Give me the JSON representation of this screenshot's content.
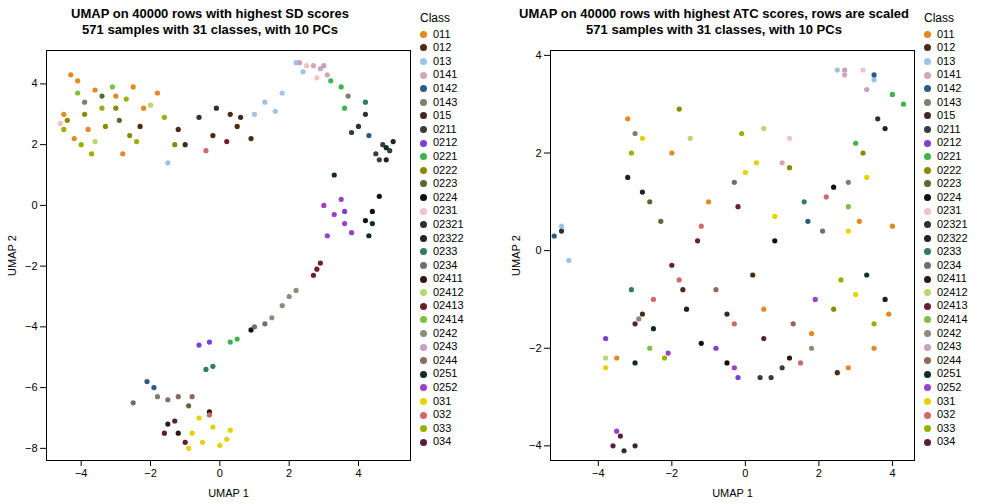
{
  "chart_data": [
    {
      "type": "scatter",
      "title": "UMAP on 40000 rows with highest SD scores",
      "subtitle": "571 samples with 31 classes, with 10 PCs",
      "x_label": "UMAP 1",
      "y_label": "UMAP 2",
      "legend_title": "Class",
      "legend": "right",
      "xlim": [
        -5,
        5.5
      ],
      "ylim": [
        -8.4,
        5.1
      ],
      "xticks": [
        -4,
        -2,
        0,
        2,
        4
      ],
      "yticks": [
        -8,
        -6,
        -4,
        -2,
        0,
        2,
        4
      ],
      "series": [
        {
          "name": "011",
          "color": "#E8871E",
          "x": [
            -4.3,
            -4.1,
            -4.5,
            -3.6,
            -3.0,
            -2.5,
            -3.8,
            -2.8,
            -4.2,
            -2.2,
            -1.8
          ],
          "y": [
            4.3,
            4.1,
            3.0,
            3.8,
            3.6,
            3.9,
            2.5,
            1.7,
            2.2,
            3.2,
            3.7
          ]
        },
        {
          "name": "012",
          "color": "#4D2A14",
          "x": [
            -1.2,
            0.3,
            0.5,
            -0.2,
            -2.3,
            0.9
          ],
          "y": [
            2.5,
            3.0,
            2.6,
            2.3,
            2.6,
            2.2
          ]
        },
        {
          "name": "013",
          "color": "#9DC3E6",
          "x": [
            1.0,
            1.3,
            1.8,
            2.2,
            2.4,
            -1.5,
            1.6
          ],
          "y": [
            3.0,
            3.4,
            3.7,
            4.7,
            4.4,
            1.4,
            3.1
          ]
        },
        {
          "name": "0141",
          "color": "#D6A6B8",
          "x": [
            2.7,
            2.9,
            3.1
          ],
          "y": [
            4.6,
            4.5,
            4.3
          ]
        },
        {
          "name": "0142",
          "color": "#2B5B84",
          "x": [
            -2.1,
            -1.9,
            4.3
          ],
          "y": [
            -5.8,
            -6.0,
            2.3
          ]
        },
        {
          "name": "0143",
          "color": "#7F7F6E",
          "x": [
            -3.9,
            -1.8,
            3.7
          ],
          "y": [
            3.4,
            -6.3,
            3.6
          ]
        },
        {
          "name": "015",
          "color": "#3C2A1E",
          "x": [
            -0.6,
            -0.1,
            0.6,
            -1.0
          ],
          "y": [
            2.9,
            3.2,
            2.9,
            2.0
          ]
        },
        {
          "name": "0211",
          "color": "#3A3A3A",
          "x": [
            4.5,
            4.7,
            4.9,
            4.6,
            3.8
          ],
          "y": [
            1.7,
            2.0,
            1.8,
            1.5,
            2.4
          ]
        },
        {
          "name": "0212",
          "color": "#7B3FD6",
          "x": [
            -0.6,
            -0.3,
            3.6
          ],
          "y": [
            -4.6,
            -4.5,
            -0.2
          ]
        },
        {
          "name": "0221",
          "color": "#3CB54A",
          "x": [
            3.2,
            3.5,
            3.6,
            0.3,
            0.5
          ],
          "y": [
            4.1,
            3.9,
            3.2,
            -4.5,
            -4.4
          ]
        },
        {
          "name": "0222",
          "color": "#8A8A00",
          "x": [
            -4.4,
            -3.9,
            -3.3,
            -3.0,
            -1.3,
            -2.6
          ],
          "y": [
            2.8,
            3.0,
            2.6,
            3.2,
            2.0,
            2.3
          ]
        },
        {
          "name": "0223",
          "color": "#556B2F",
          "x": [
            -3.4,
            -2.9,
            -0.9
          ],
          "y": [
            3.6,
            2.8,
            -6.6
          ]
        },
        {
          "name": "0224",
          "color": "#101010",
          "x": [
            4.4,
            4.6,
            4.2,
            0.9
          ],
          "y": [
            -0.2,
            0.3,
            -0.5,
            -4.1
          ]
        },
        {
          "name": "0231",
          "color": "#F4C2C2",
          "x": [
            2.5,
            2.8,
            -4.6
          ],
          "y": [
            4.6,
            4.2,
            2.7
          ]
        },
        {
          "name": "02321",
          "color": "#2F2F2F",
          "x": [
            4.2,
            4.0
          ],
          "y": [
            3.0,
            2.6
          ]
        },
        {
          "name": "02322",
          "color": "#222222",
          "x": [
            5.0,
            4.8
          ],
          "y": [
            2.1,
            1.5
          ]
        },
        {
          "name": "0233",
          "color": "#2E7D5B",
          "x": [
            -0.4,
            -0.2,
            4.2
          ],
          "y": [
            -5.4,
            -5.3,
            3.4
          ]
        },
        {
          "name": "0234",
          "color": "#6E6E6E",
          "x": [
            1.0,
            1.3,
            -2.5
          ],
          "y": [
            -4.0,
            -3.9,
            -6.5
          ]
        },
        {
          "name": "02411",
          "color": "#2A1A10",
          "x": [
            -1.5,
            -1.2,
            -0.3
          ],
          "y": [
            -7.2,
            -7.5,
            -6.8
          ]
        },
        {
          "name": "02412",
          "color": "#B5D96B",
          "x": [
            -3.6,
            -2.0
          ],
          "y": [
            2.1,
            3.3
          ]
        },
        {
          "name": "02413",
          "color": "#6B1F2A",
          "x": [
            2.7,
            2.8,
            2.9,
            0.2
          ],
          "y": [
            -2.3,
            -2.1,
            -1.9,
            2.1
          ]
        },
        {
          "name": "02414",
          "color": "#7FBF3F",
          "x": [
            -4.1,
            -3.1
          ],
          "y": [
            3.7,
            3.9
          ]
        },
        {
          "name": "0242",
          "color": "#8C8C7A",
          "x": [
            2.0,
            1.8,
            2.2,
            1.5
          ],
          "y": [
            -3.0,
            -3.3,
            -2.8,
            -3.7
          ]
        },
        {
          "name": "0243",
          "color": "#C9A0C0",
          "x": [
            2.3,
            3.0
          ],
          "y": [
            4.7,
            4.6
          ]
        },
        {
          "name": "0244",
          "color": "#8B6B5B",
          "x": [
            -1.5,
            -1.2,
            -0.8
          ],
          "y": [
            -6.4,
            -6.3,
            -6.3
          ]
        },
        {
          "name": "0251",
          "color": "#0F2F1F",
          "x": [
            4.4,
            4.3,
            4.8,
            3.3
          ],
          "y": [
            -0.6,
            -1.0,
            1.9,
            1.0
          ]
        },
        {
          "name": "0252",
          "color": "#9B40C8",
          "x": [
            3.0,
            3.3,
            3.6,
            3.8,
            3.1,
            3.5
          ],
          "y": [
            0.0,
            -0.3,
            -0.6,
            -0.9,
            -1.0,
            0.2
          ]
        },
        {
          "name": "031",
          "color": "#E6D200",
          "x": [
            -0.8,
            -0.5,
            -0.2,
            0.2,
            0.3,
            -0.6,
            -0.9,
            0.0
          ],
          "y": [
            -7.5,
            -7.8,
            -7.3,
            -7.7,
            -7.4,
            -7.0,
            -8.0,
            -7.9
          ]
        },
        {
          "name": "032",
          "color": "#D06A6A",
          "x": [
            -0.3,
            -0.4
          ],
          "y": [
            -6.9,
            1.8
          ]
        },
        {
          "name": "033",
          "color": "#9AB000",
          "x": [
            -4.5,
            -4.0,
            -3.4,
            -2.7,
            -2.4,
            -1.6,
            -3.7
          ],
          "y": [
            2.5,
            2.0,
            3.2,
            3.5,
            2.1,
            2.9,
            1.7
          ]
        },
        {
          "name": "034",
          "color": "#5A1E3C",
          "x": [
            -1.6,
            -1.3,
            -1.0
          ],
          "y": [
            -7.5,
            -7.1,
            -7.8
          ]
        }
      ]
    },
    {
      "type": "scatter",
      "title": "UMAP on 40000 rows with highest ATC scores, rows are scaled",
      "subtitle": "571 samples with 31 classes, with 10 PCs",
      "x_label": "UMAP 1",
      "y_label": "UMAP 2",
      "legend_title": "Class",
      "legend": "right",
      "xlim": [
        -5.3,
        4.6
      ],
      "ylim": [
        -4.3,
        4.1
      ],
      "xticks": [
        -4,
        -2,
        0,
        2,
        4
      ],
      "yticks": [
        -4,
        -2,
        0,
        2,
        4
      ],
      "series": [
        {
          "name": "011",
          "color": "#E8871E",
          "x": [
            -3.2,
            -2.0,
            0.5,
            1.8,
            2.8,
            3.5,
            3.9,
            4.0,
            -3.5,
            -1.0,
            3.1
          ],
          "y": [
            2.7,
            2.0,
            -1.2,
            -1.7,
            -2.4,
            -2.0,
            -1.3,
            0.5,
            -2.2,
            1.0,
            0.6
          ]
        },
        {
          "name": "012",
          "color": "#4D2A14",
          "x": [
            -2.8,
            0.2,
            2.5,
            -1.7
          ],
          "y": [
            -1.3,
            -0.5,
            -2.5,
            -0.8
          ]
        },
        {
          "name": "013",
          "color": "#9DC3E6",
          "x": [
            -5.0,
            -4.8,
            2.5,
            3.5,
            4.0
          ],
          "y": [
            0.5,
            -0.2,
            3.7,
            3.5,
            3.2
          ]
        },
        {
          "name": "0141",
          "color": "#D6A6B8",
          "x": [
            2.7,
            1.0
          ],
          "y": [
            3.6,
            1.8
          ]
        },
        {
          "name": "0142",
          "color": "#2B5B84",
          "x": [
            -5.2,
            3.5,
            1.7
          ],
          "y": [
            0.3,
            3.6,
            0.6
          ]
        },
        {
          "name": "0143",
          "color": "#7F7F6E",
          "x": [
            -3.0,
            2.8
          ],
          "y": [
            2.4,
            1.4
          ]
        },
        {
          "name": "015",
          "color": "#3C2A1E",
          "x": [
            -3.3,
            -3.0,
            -0.5
          ],
          "y": [
            -4.1,
            -4.0,
            -1.3
          ]
        },
        {
          "name": "0211",
          "color": "#3A3A3A",
          "x": [
            0.4,
            0.7,
            1.0
          ],
          "y": [
            -2.6,
            -2.6,
            -2.4
          ]
        },
        {
          "name": "0212",
          "color": "#7B3FD6",
          "x": [
            -0.8,
            -0.2,
            -3.8
          ],
          "y": [
            -2.0,
            -2.6,
            -1.8
          ]
        },
        {
          "name": "0221",
          "color": "#3CB54A",
          "x": [
            4.3,
            4.0,
            3.0
          ],
          "y": [
            3.0,
            3.2,
            2.2
          ]
        },
        {
          "name": "0222",
          "color": "#8A8A00",
          "x": [
            -1.8,
            1.2,
            2.4,
            3.2
          ],
          "y": [
            2.9,
            1.7,
            -1.2,
            2.0
          ]
        },
        {
          "name": "0223",
          "color": "#556B2F",
          "x": [
            -2.6,
            -2.3
          ],
          "y": [
            1.0,
            0.6
          ]
        },
        {
          "name": "0224",
          "color": "#101010",
          "x": [
            -1.2,
            -0.5,
            0.8,
            2.4
          ],
          "y": [
            -1.9,
            -2.3,
            0.2,
            1.3
          ]
        },
        {
          "name": "0231",
          "color": "#F4C2C2",
          "x": [
            1.2,
            3.2
          ],
          "y": [
            2.3,
            3.7
          ]
        },
        {
          "name": "02321",
          "color": "#2F2F2F",
          "x": [
            -5.0,
            3.6
          ],
          "y": [
            0.4,
            2.7
          ]
        },
        {
          "name": "02322",
          "color": "#222222",
          "x": [
            -3.2,
            -2.8,
            3.8
          ],
          "y": [
            1.5,
            1.2,
            2.5
          ]
        },
        {
          "name": "0233",
          "color": "#2E7D5B",
          "x": [
            -3.1,
            1.6
          ],
          "y": [
            -0.8,
            1.0
          ]
        },
        {
          "name": "0234",
          "color": "#6E6E6E",
          "x": [
            -0.3,
            2.1
          ],
          "y": [
            1.4,
            0.4
          ]
        },
        {
          "name": "02411",
          "color": "#2A1A10",
          "x": [
            -1.6,
            1.2,
            3.8
          ],
          "y": [
            -1.2,
            -2.2,
            -1.0
          ]
        },
        {
          "name": "02412",
          "color": "#B5D96B",
          "x": [
            -3.8,
            -1.5,
            0.5
          ],
          "y": [
            -2.2,
            2.3,
            2.5
          ]
        },
        {
          "name": "02413",
          "color": "#6B1F2A",
          "x": [
            -2.0,
            -1.3,
            -0.2
          ],
          "y": [
            -0.3,
            0.2,
            0.9
          ]
        },
        {
          "name": "02414",
          "color": "#7FBF3F",
          "x": [
            -2.6,
            2.8
          ],
          "y": [
            -2.0,
            0.9
          ]
        },
        {
          "name": "0242",
          "color": "#8C8C7A",
          "x": [
            1.8,
            -2.9
          ],
          "y": [
            -2.0,
            -1.4
          ]
        },
        {
          "name": "0243",
          "color": "#C9A0C0",
          "x": [
            2.7,
            3.3
          ],
          "y": [
            3.7,
            3.3
          ]
        },
        {
          "name": "0244",
          "color": "#8B6B5B",
          "x": [
            -0.8,
            1.3
          ],
          "y": [
            -0.8,
            -1.5
          ]
        },
        {
          "name": "0251",
          "color": "#0F2F1F",
          "x": [
            -3.0,
            -2.5,
            3.3
          ],
          "y": [
            -2.3,
            -1.6,
            -0.5
          ]
        },
        {
          "name": "0252",
          "color": "#9B40C8",
          "x": [
            -2.1,
            -0.3,
            1.9,
            -3.5
          ],
          "y": [
            -2.1,
            -2.4,
            -1.0,
            -3.7
          ]
        },
        {
          "name": "031",
          "color": "#E6D200",
          "x": [
            -3.8,
            0.0,
            0.3,
            0.8,
            2.8,
            3.3,
            3.0,
            -2.8
          ],
          "y": [
            -2.4,
            1.6,
            1.8,
            0.7,
            0.4,
            1.5,
            -0.9,
            2.3
          ]
        },
        {
          "name": "032",
          "color": "#D06A6A",
          "x": [
            -2.5,
            -1.8,
            -1.2,
            -0.3,
            1.5,
            2.2
          ],
          "y": [
            -1.0,
            -0.6,
            0.5,
            -1.5,
            -2.3,
            1.1
          ]
        },
        {
          "name": "033",
          "color": "#9AB000",
          "x": [
            -3.1,
            -2.2,
            3.5,
            -0.1,
            2.6
          ],
          "y": [
            2.0,
            -2.2,
            -1.5,
            2.4,
            -0.6
          ]
        },
        {
          "name": "034",
          "color": "#5A1E3C",
          "x": [
            -3.6,
            -3.4,
            -3.0,
            0.5
          ],
          "y": [
            -4.0,
            -3.8,
            -1.5,
            -1.8
          ]
        }
      ]
    }
  ]
}
